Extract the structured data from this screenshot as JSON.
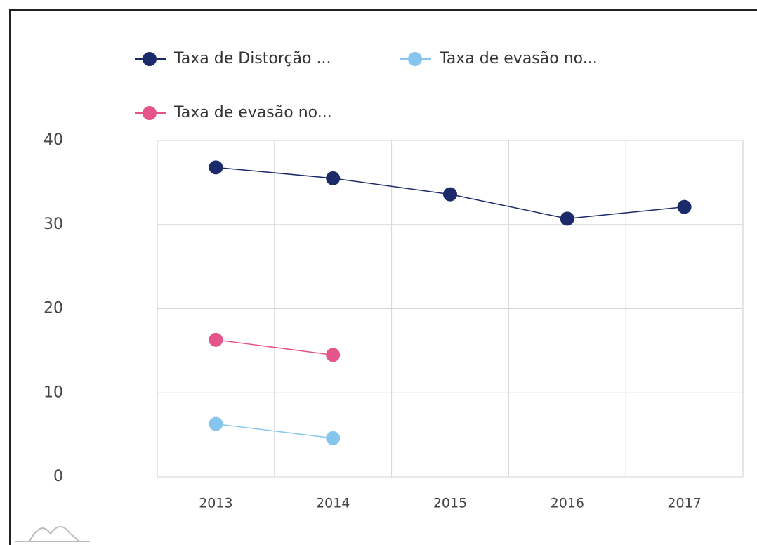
{
  "chart_data": {
    "type": "line",
    "categories": [
      "2013",
      "2014",
      "2015",
      "2016",
      "2017"
    ],
    "series": [
      {
        "name": "Taxa de Distorção ...",
        "color": "#1b2a68",
        "values": [
          36.8,
          35.5,
          33.6,
          30.7,
          32.1
        ]
      },
      {
        "name": "Taxa de evasão no...",
        "color": "#86c6ee",
        "values": [
          6.3,
          4.6,
          null,
          null,
          null
        ]
      },
      {
        "name": "Taxa de evasão no...",
        "color": "#e5548b",
        "values": [
          16.3,
          14.5,
          null,
          null,
          null
        ]
      }
    ],
    "ylim": [
      0,
      40
    ],
    "yticks": [
      0,
      10,
      20,
      30,
      40
    ],
    "grid": true,
    "legend": "top"
  }
}
